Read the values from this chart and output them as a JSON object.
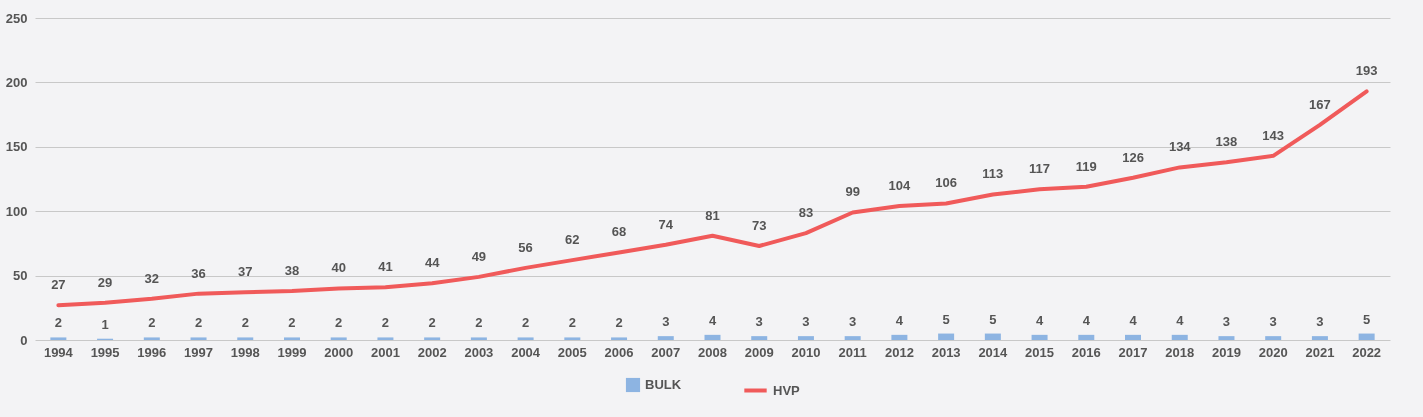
{
  "chart_data": {
    "type": "bar",
    "categories": [
      "1994",
      "1995",
      "1996",
      "1997",
      "1998",
      "1999",
      "2000",
      "2001",
      "2002",
      "2003",
      "2004",
      "2005",
      "2006",
      "2007",
      "2008",
      "2009",
      "2010",
      "2011",
      "2012",
      "2013",
      "2014",
      "2015",
      "2016",
      "2017",
      "2018",
      "2019",
      "2020",
      "2021",
      "2022"
    ],
    "series": [
      {
        "name": "BULK",
        "color": "#8db4e2",
        "values": [
          2,
          1,
          2,
          2,
          2,
          2,
          2,
          2,
          2,
          2,
          2,
          2,
          2,
          3,
          4,
          3,
          3,
          3,
          4,
          5,
          5,
          4,
          4,
          4,
          4,
          3,
          3,
          3,
          5
        ]
      },
      {
        "name": "HVP",
        "type": "line",
        "color": "#f05a5a",
        "values": [
          27,
          29,
          32,
          36,
          37,
          38,
          40,
          41,
          44,
          49,
          56,
          62,
          68,
          74,
          81,
          73,
          83,
          99,
          104,
          106,
          113,
          117,
          119,
          126,
          134,
          138,
          143,
          167,
          193
        ]
      }
    ],
    "ylim": [
      0,
      250
    ],
    "yticks": [
      0,
      50,
      100,
      150,
      200,
      250
    ],
    "grid": "y",
    "legend": "bottom",
    "data_labels": true
  }
}
